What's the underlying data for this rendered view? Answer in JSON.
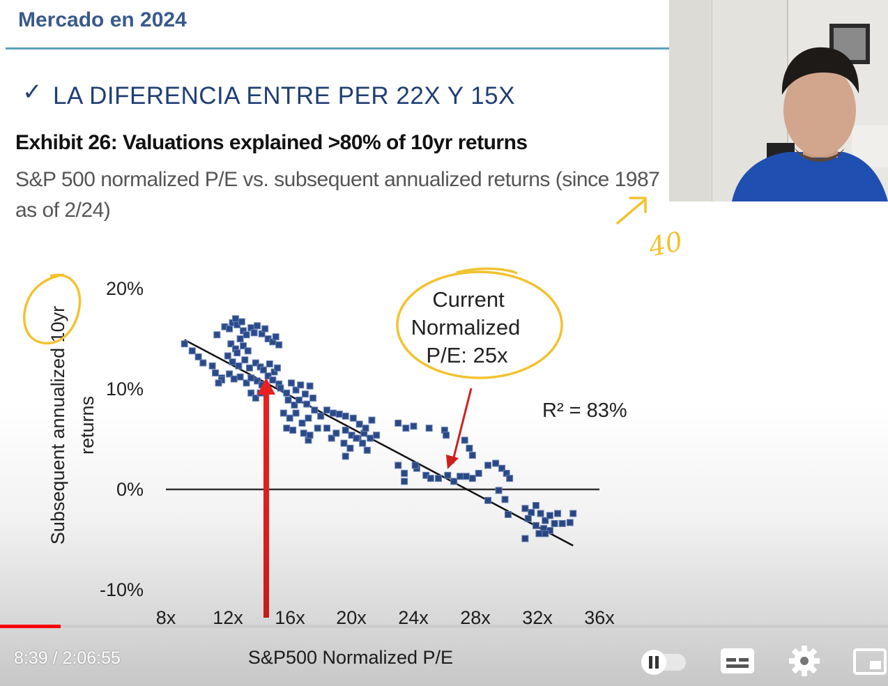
{
  "header": {
    "title": "Mercado en 2024",
    "accent_color": "#5aa3bd"
  },
  "slide": {
    "check_icon": "✓",
    "heading": "LA DIFERENCIA ENTRE PER 22X Y 15X",
    "exhibit_title": "Exhibit 26: Valuations explained >80% of 10yr returns",
    "exhibit_subtitle": "S&P 500 normalized P/E vs. subsequent annualized returns (since 1987 as of 2/24)"
  },
  "chart_data": {
    "type": "scatter",
    "xlabel": "S&P500 Normalized P/E",
    "ylabel_line1": "Subsequent annualized 10yr",
    "ylabel_line2": "returns",
    "xlim": [
      8,
      36
    ],
    "ylim": [
      -10,
      20
    ],
    "x_ticks": [
      "8x",
      "12x",
      "16x",
      "20x",
      "24x",
      "28x",
      "32x",
      "36x"
    ],
    "x_tick_values": [
      8,
      12,
      16,
      20,
      24,
      28,
      32,
      36
    ],
    "y_ticks": [
      "20%",
      "10%",
      "0%",
      "-10%"
    ],
    "y_tick_values": [
      20,
      10,
      0,
      -10
    ],
    "marker_color": "#2b4a8a",
    "trendline": {
      "x": [
        9.2,
        34.3
      ],
      "y": [
        14.9,
        -5.6
      ]
    },
    "zero_line": true,
    "annotation_r2": "R² = 83%",
    "callout": {
      "lines": [
        "Current",
        "Normalized",
        "P/E: 25x"
      ]
    },
    "points": [
      [
        9.2,
        14.5
      ],
      [
        9.7,
        13.8
      ],
      [
        10.1,
        13.2
      ],
      [
        10.4,
        12.6
      ],
      [
        11,
        12.3
      ],
      [
        11.2,
        11.6
      ],
      [
        11.6,
        11.1
      ],
      [
        11.6,
        10.9
      ],
      [
        11.4,
        10.6
      ],
      [
        11.3,
        15.4
      ],
      [
        11.8,
        16.2
      ],
      [
        12.1,
        16
      ],
      [
        12.3,
        16.6
      ],
      [
        12.5,
        17
      ],
      [
        12.6,
        16.4
      ],
      [
        12.9,
        16.7
      ],
      [
        13,
        15.8
      ],
      [
        13.2,
        15.4
      ],
      [
        13.5,
        16.1
      ],
      [
        13.7,
        15.6
      ],
      [
        13.9,
        16.3
      ],
      [
        14.2,
        15.5
      ],
      [
        14.4,
        16
      ],
      [
        14.6,
        15
      ],
      [
        14.9,
        14.7
      ],
      [
        15.1,
        15.2
      ],
      [
        15.3,
        14.4
      ],
      [
        12.2,
        14.5
      ],
      [
        12.5,
        14
      ],
      [
        12.8,
        15
      ],
      [
        12.6,
        13.6
      ],
      [
        13,
        14.3
      ],
      [
        13.3,
        13.8
      ],
      [
        12,
        13.3
      ],
      [
        12.3,
        12.7
      ],
      [
        12.7,
        12.3
      ],
      [
        13.1,
        12.9
      ],
      [
        13.4,
        12.1
      ],
      [
        13.8,
        12.6
      ],
      [
        14.1,
        12.2
      ],
      [
        14.3,
        11.9
      ],
      [
        14.7,
        12.5
      ],
      [
        15,
        11.7
      ],
      [
        15.2,
        12.1
      ],
      [
        12.1,
        11.5
      ],
      [
        12.4,
        11
      ],
      [
        12.8,
        11.2
      ],
      [
        13.2,
        10.6
      ],
      [
        13.5,
        11.1
      ],
      [
        13.9,
        10.8
      ],
      [
        14.2,
        10.4
      ],
      [
        14.6,
        11.3
      ],
      [
        14.9,
        10.9
      ],
      [
        15.3,
        10.5
      ],
      [
        13.5,
        9.6
      ],
      [
        13.8,
        9.1
      ],
      [
        14.1,
        9.6
      ],
      [
        15.4,
        10.1
      ],
      [
        15.8,
        9.6
      ],
      [
        16.1,
        10.6
      ],
      [
        16.4,
        9.9
      ],
      [
        16.7,
        10.4
      ],
      [
        17,
        9.5
      ],
      [
        17.3,
        10.3
      ],
      [
        15.9,
        8.9
      ],
      [
        16.3,
        8.4
      ],
      [
        16.6,
        8.9
      ],
      [
        17.1,
        8.5
      ],
      [
        17.5,
        9.1
      ],
      [
        15.6,
        7.6
      ],
      [
        16,
        7.1
      ],
      [
        16.4,
        7.6
      ],
      [
        16.8,
        6.6
      ],
      [
        17.2,
        7.1
      ],
      [
        17.6,
        7.9
      ],
      [
        18,
        7.3
      ],
      [
        18.4,
        7.9
      ],
      [
        18.8,
        7.6
      ],
      [
        19.2,
        7.5
      ],
      [
        19.6,
        7.3
      ],
      [
        15.8,
        6.1
      ],
      [
        16.2,
        5.9
      ],
      [
        16.9,
        5.6
      ],
      [
        17.2,
        4.9
      ],
      [
        17.3,
        5.4
      ],
      [
        17.8,
        6.1
      ],
      [
        18.4,
        6.1
      ],
      [
        18.7,
        5.1
      ],
      [
        19,
        5.6
      ],
      [
        19.6,
        5.9
      ],
      [
        20,
        5.4
      ],
      [
        20.4,
        5.1
      ],
      [
        20.8,
        5.6
      ],
      [
        21.2,
        5.1
      ],
      [
        21.6,
        5.4
      ],
      [
        20.1,
        7.1
      ],
      [
        20.5,
        6.5
      ],
      [
        20.9,
        6.1
      ],
      [
        21.3,
        6.9
      ],
      [
        19.5,
        4.6
      ],
      [
        19.9,
        4.1
      ],
      [
        20.3,
        5.1
      ],
      [
        20.7,
        4.6
      ],
      [
        21,
        3.9
      ],
      [
        19.6,
        3.3
      ],
      [
        23,
        6.6
      ],
      [
        23.5,
        6.1
      ],
      [
        24,
        6.3
      ],
      [
        25,
        6.1
      ],
      [
        26,
        5.9
      ],
      [
        23,
        2.4
      ],
      [
        23.4,
        1.6
      ],
      [
        24.2,
        2.1
      ],
      [
        24.8,
        1.4
      ],
      [
        25.1,
        1.1
      ],
      [
        25.6,
        1.1
      ],
      [
        23.4,
        0.8
      ],
      [
        24.1,
        2.4
      ],
      [
        26.1,
        5.4
      ],
      [
        26.4,
        2.9
      ],
      [
        26.2,
        1.4
      ],
      [
        26.6,
        0.8
      ],
      [
        27,
        1.3
      ],
      [
        27.4,
        1.3
      ],
      [
        27.8,
        1.1
      ],
      [
        28.2,
        1.6
      ],
      [
        27.3,
        4.9
      ],
      [
        27.6,
        4.1
      ],
      [
        27.8,
        3.4
      ],
      [
        28.8,
        2.4
      ],
      [
        29.3,
        2.6
      ],
      [
        29.7,
        2.1
      ],
      [
        30,
        1.6
      ],
      [
        30.2,
        1.1
      ],
      [
        29.5,
        -0.1
      ],
      [
        29.9,
        -1
      ],
      [
        28.8,
        -1.1
      ],
      [
        30.1,
        -2.5
      ],
      [
        31.2,
        -1.9
      ],
      [
        31.6,
        -2.3
      ],
      [
        31.9,
        -1.6
      ],
      [
        32.2,
        -2.4
      ],
      [
        32.5,
        -3.1
      ],
      [
        32.8,
        -2.6
      ],
      [
        33.1,
        -3.4
      ],
      [
        33.3,
        -2.4
      ],
      [
        31.4,
        -2.9
      ],
      [
        31.9,
        -3.6
      ],
      [
        32.4,
        -3.9
      ],
      [
        32.8,
        -4.1
      ],
      [
        33.6,
        -3.4
      ],
      [
        34.1,
        -3.3
      ],
      [
        34.3,
        -2.4
      ],
      [
        32.1,
        -4.4
      ],
      [
        32.5,
        -4.4
      ],
      [
        31.2,
        -4.9
      ]
    ]
  },
  "annotations": {
    "ink_color": "#f2c230",
    "handwritten_text": "40",
    "red_arrow_color": "#e8201e"
  },
  "player": {
    "time_display": "8:39 / 2:06:55",
    "progress_fraction": 0.068,
    "progress_color": "#ff0000",
    "controls": [
      "autoplay-toggle-icon",
      "subtitles-icon",
      "settings-gear-icon",
      "miniplayer-icon"
    ]
  }
}
